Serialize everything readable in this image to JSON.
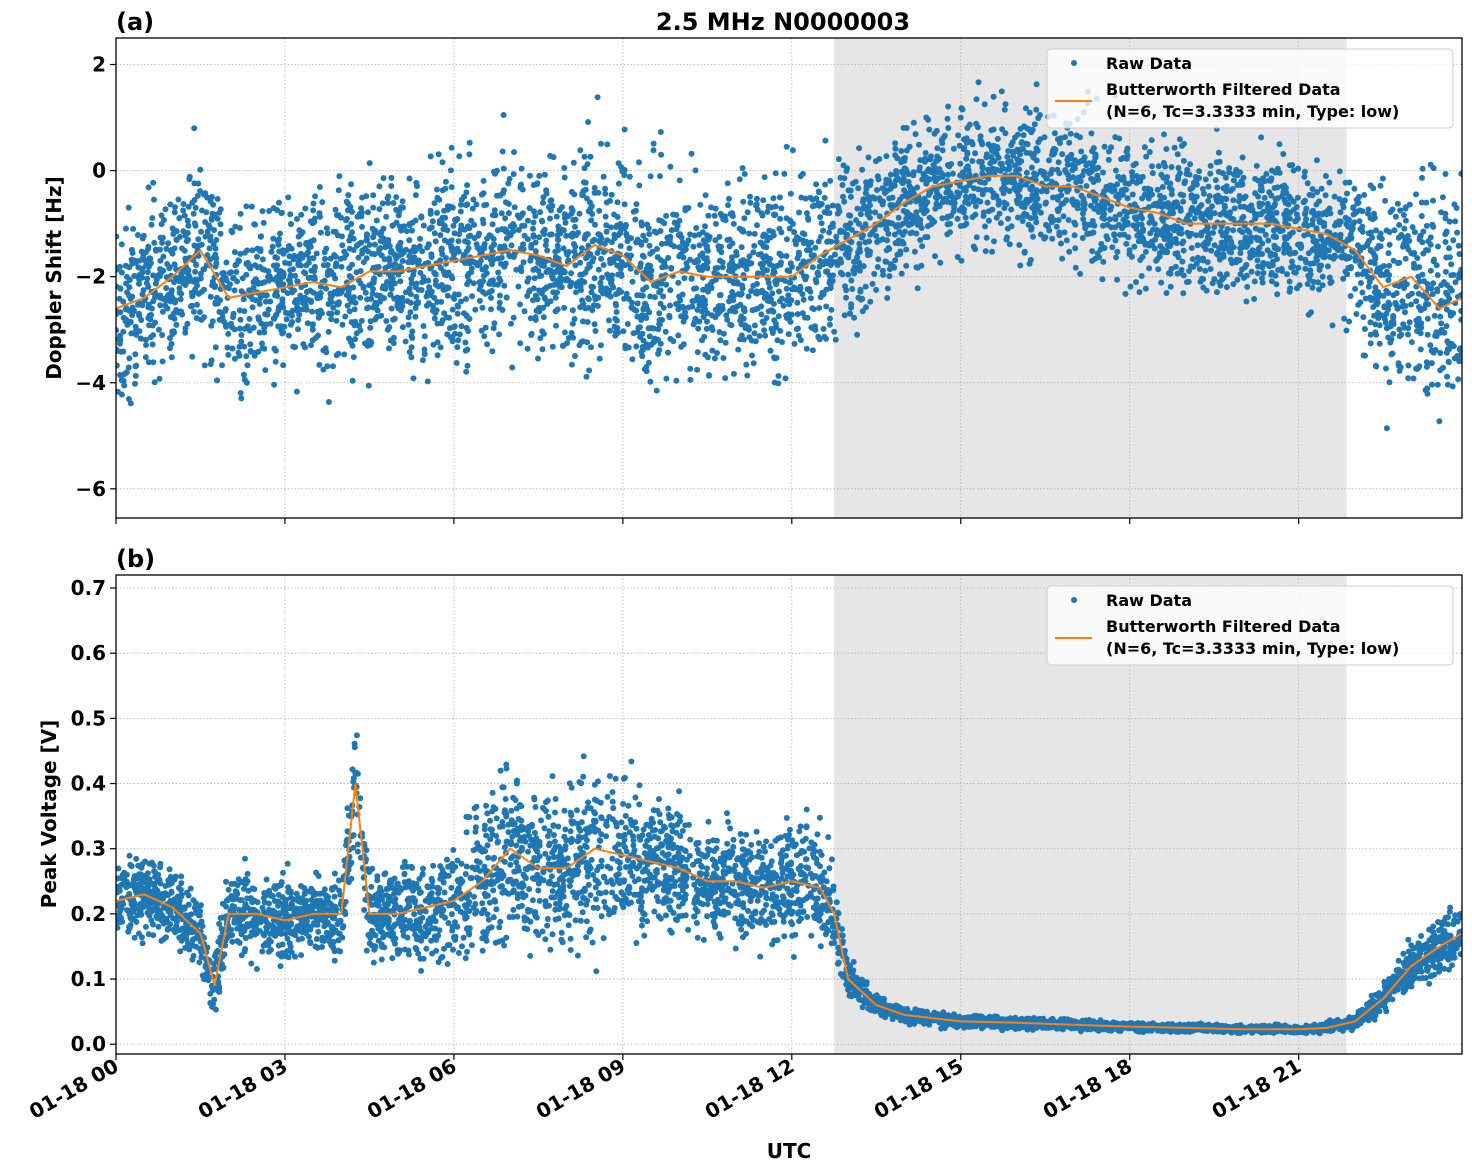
{
  "title": "2.5 MHz N0000003",
  "xlabel": "UTC",
  "x_ticks": [
    "01-18 00",
    "01-18 03",
    "01-18 06",
    "01-18 09",
    "01-18 12",
    "01-18 15",
    "01-18 18",
    "01-18 21"
  ],
  "x_tick_hours": [
    0,
    3,
    6,
    9,
    12,
    15,
    18,
    21
  ],
  "x_range_hours": [
    0,
    23.9
  ],
  "shaded_interval_hours": [
    12.75,
    21.85
  ],
  "colors": {
    "raw": "#1f77b4",
    "filtered": "#ff7f0e",
    "shade": "#e6e6e6",
    "grid": "#b0b0b0"
  },
  "chart_data": [
    {
      "type": "scatter+line",
      "panel_label": "(a)",
      "ylabel": "Doppler Shift [Hz]",
      "ylim": [
        -6.55,
        2.5
      ],
      "y_ticks": [
        "2",
        "0",
        "−2",
        "−4",
        "−6"
      ],
      "y_tick_values": [
        2,
        0,
        -2,
        -4,
        -6
      ],
      "grid": true,
      "legend": {
        "placement": "top-right",
        "raw": "Raw Data",
        "filtered_line1": "Butterworth Filtered Data",
        "filtered_line2": "(N=6, Tc=3.3333 min, Type: low)"
      },
      "x_hours": [
        0,
        0.5,
        1,
        1.5,
        2,
        2.5,
        3,
        3.5,
        4,
        4.5,
        5,
        5.5,
        6,
        6.5,
        7,
        7.5,
        8,
        8.5,
        9,
        9.5,
        10,
        10.5,
        11,
        11.5,
        12,
        12.5,
        13,
        13.5,
        14,
        14.5,
        15,
        15.5,
        16,
        16.5,
        17,
        17.5,
        18,
        18.5,
        19,
        19.5,
        20,
        20.5,
        21,
        21.5,
        22,
        22.5,
        23,
        23.5,
        23.9
      ],
      "filtered": [
        -2.6,
        -2.4,
        -2.0,
        -1.5,
        -2.4,
        -2.3,
        -2.2,
        -2.1,
        -2.2,
        -1.9,
        -1.9,
        -1.8,
        -1.7,
        -1.6,
        -1.5,
        -1.6,
        -1.8,
        -1.4,
        -1.6,
        -2.1,
        -1.9,
        -2.0,
        -2.0,
        -2.0,
        -2.0,
        -1.6,
        -1.3,
        -1.0,
        -0.6,
        -0.3,
        -0.2,
        -0.1,
        -0.1,
        -0.3,
        -0.3,
        -0.5,
        -0.7,
        -0.8,
        -1.0,
        -1.0,
        -1.0,
        -1.0,
        -1.1,
        -1.2,
        -1.5,
        -2.2,
        -2.0,
        -2.6,
        -2.4
      ],
      "raw_spread": [
        1.4,
        1.5,
        1.5,
        1.5,
        1.5,
        1.4,
        1.4,
        1.4,
        1.5,
        1.5,
        1.5,
        1.5,
        1.6,
        1.6,
        1.6,
        1.6,
        1.5,
        1.7,
        1.8,
        1.8,
        1.7,
        1.6,
        1.5,
        1.5,
        1.6,
        1.6,
        1.4,
        1.3,
        1.2,
        1.2,
        1.2,
        1.2,
        1.2,
        1.2,
        1.2,
        1.2,
        1.2,
        1.2,
        1.2,
        1.2,
        1.2,
        1.2,
        1.2,
        1.2,
        1.3,
        1.9,
        2.0,
        2.0,
        2.0
      ]
    },
    {
      "type": "scatter+line",
      "panel_label": "(b)",
      "ylabel": "Peak Voltage [V]",
      "ylim": [
        -0.015,
        0.72
      ],
      "y_ticks": [
        "0.0",
        "0.1",
        "0.2",
        "0.3",
        "0.4",
        "0.5",
        "0.6",
        "0.7"
      ],
      "y_tick_values": [
        0,
        0.1,
        0.2,
        0.3,
        0.4,
        0.5,
        0.6,
        0.7
      ],
      "grid": true,
      "legend": {
        "placement": "top-right",
        "raw": "Raw Data",
        "filtered_line1": "Butterworth Filtered Data",
        "filtered_line2": "(N=6, Tc=3.3333 min, Type: low)"
      },
      "x_hours": [
        0,
        0.5,
        1,
        1.5,
        1.75,
        2,
        2.5,
        3,
        3.5,
        4,
        4.25,
        4.5,
        5,
        5.5,
        6,
        6.5,
        7,
        7.5,
        8,
        8.5,
        9,
        9.5,
        10,
        10.5,
        11,
        11.5,
        12,
        12.5,
        12.75,
        13,
        13.5,
        14,
        15,
        16,
        17,
        18,
        19,
        20,
        21,
        21.5,
        22,
        22.5,
        23,
        23.5,
        23.9
      ],
      "filtered": [
        0.22,
        0.23,
        0.21,
        0.17,
        0.09,
        0.2,
        0.2,
        0.19,
        0.2,
        0.2,
        0.4,
        0.2,
        0.2,
        0.21,
        0.22,
        0.25,
        0.3,
        0.27,
        0.27,
        0.3,
        0.29,
        0.28,
        0.27,
        0.25,
        0.25,
        0.24,
        0.25,
        0.24,
        0.2,
        0.1,
        0.06,
        0.045,
        0.035,
        0.033,
        0.03,
        0.027,
        0.025,
        0.023,
        0.023,
        0.025,
        0.035,
        0.07,
        0.12,
        0.15,
        0.17
      ],
      "raw_spread": [
        0.05,
        0.05,
        0.05,
        0.05,
        0.05,
        0.05,
        0.06,
        0.06,
        0.05,
        0.06,
        0.08,
        0.06,
        0.06,
        0.07,
        0.08,
        0.1,
        0.12,
        0.1,
        0.1,
        0.12,
        0.1,
        0.09,
        0.08,
        0.07,
        0.07,
        0.07,
        0.08,
        0.08,
        0.06,
        0.03,
        0.012,
        0.01,
        0.008,
        0.008,
        0.007,
        0.006,
        0.006,
        0.005,
        0.005,
        0.006,
        0.01,
        0.02,
        0.03,
        0.04,
        0.04
      ]
    }
  ]
}
